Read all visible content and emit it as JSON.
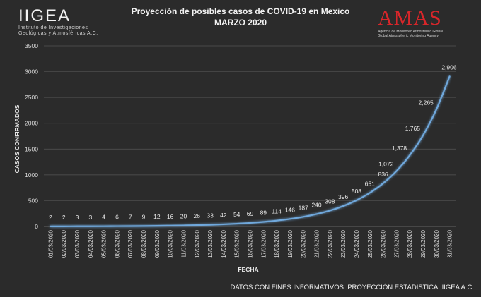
{
  "logo_left": {
    "name": "IIGEA",
    "line1": "Instituto de Investigaciones",
    "line2": "Geológicas y Atmosféricas A.C."
  },
  "logo_right": {
    "name": "AMAS",
    "line1": "Agencia de Monitoreo Atmosférico Global",
    "line2": "Global Atmospheric Monitoring Agency"
  },
  "footer": "DATOS CON FINES INFORMATIVOS. PROYECCIÓN ESTADÍSTICA. IIGEA A.C.",
  "colors": {
    "line": "#6fa8dc",
    "background": "#2b2b2b",
    "grid": "#555555",
    "brand_red": "#d9262a"
  },
  "chart_data": {
    "type": "line",
    "title": "Proyección de posibles casos de COVID-19 en Mexico",
    "subtitle": "MARZO 2020",
    "xlabel": "FECHA",
    "ylabel": "CASOS CONFIRMADOS",
    "ylim": [
      0,
      3500
    ],
    "yticks": [
      0,
      500,
      1000,
      1500,
      2000,
      2500,
      3000,
      3500
    ],
    "grid": true,
    "categories": [
      "01/03/2020",
      "02/03/2020",
      "03/03/2020",
      "04/03/2020",
      "05/03/2020",
      "06/03/2020",
      "07/03/2020",
      "08/03/2020",
      "09/03/2020",
      "10/03/2020",
      "11/03/2020",
      "12/03/2020",
      "13/03/2020",
      "14/03/2020",
      "15/03/2020",
      "16/03/2020",
      "17/03/2020",
      "18/03/2020",
      "19/03/2020",
      "20/03/2020",
      "21/03/2020",
      "22/03/2020",
      "23/03/2020",
      "24/03/2020",
      "25/03/2020",
      "26/03/2020",
      "27/03/2020",
      "28/03/2020",
      "29/03/2020",
      "30/03/2020",
      "31/03/2020"
    ],
    "values": [
      2,
      2,
      3,
      3,
      4,
      6,
      7,
      9,
      12,
      16,
      20,
      26,
      33,
      42,
      54,
      69,
      89,
      114,
      146,
      187,
      240,
      308,
      396,
      508,
      651,
      836,
      1072,
      1378,
      1765,
      2265,
      2906
    ],
    "labels": [
      "2",
      "2",
      "3",
      "3",
      "4",
      "6",
      "7",
      "9",
      "12",
      "16",
      "20",
      "26",
      "33",
      "42",
      "54",
      "69",
      "89",
      "114",
      "146",
      "187",
      "240",
      "308",
      "396",
      "508",
      "651",
      "836",
      "1,072",
      "1,378",
      "1,765",
      "2,265",
      "2,906"
    ]
  }
}
